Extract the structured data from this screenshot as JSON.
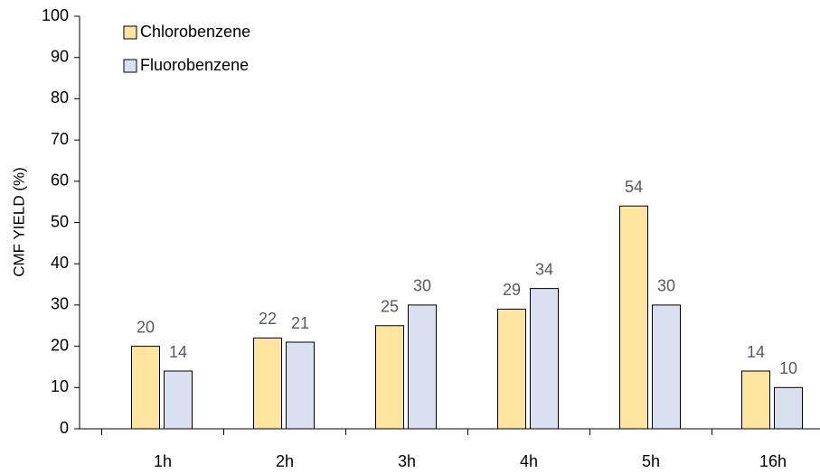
{
  "chart_data": {
    "type": "bar",
    "y_label": "CMF YIELD (%)",
    "categories": [
      "1h",
      "2h",
      "3h",
      "4h",
      "5h",
      "16h"
    ],
    "series": [
      {
        "name": "Chlorobenzene",
        "color": "#fde59f",
        "values": [
          20,
          22,
          25,
          29,
          54,
          14
        ]
      },
      {
        "name": "Fluorobenzene",
        "color": "#dae0f0",
        "values": [
          14,
          21,
          30,
          34,
          30,
          10
        ]
      }
    ],
    "ylim": [
      0,
      100
    ],
    "yticks": [
      0,
      10,
      20,
      30,
      40,
      50,
      60,
      70,
      80,
      90,
      100
    ],
    "legend": "top-left"
  }
}
